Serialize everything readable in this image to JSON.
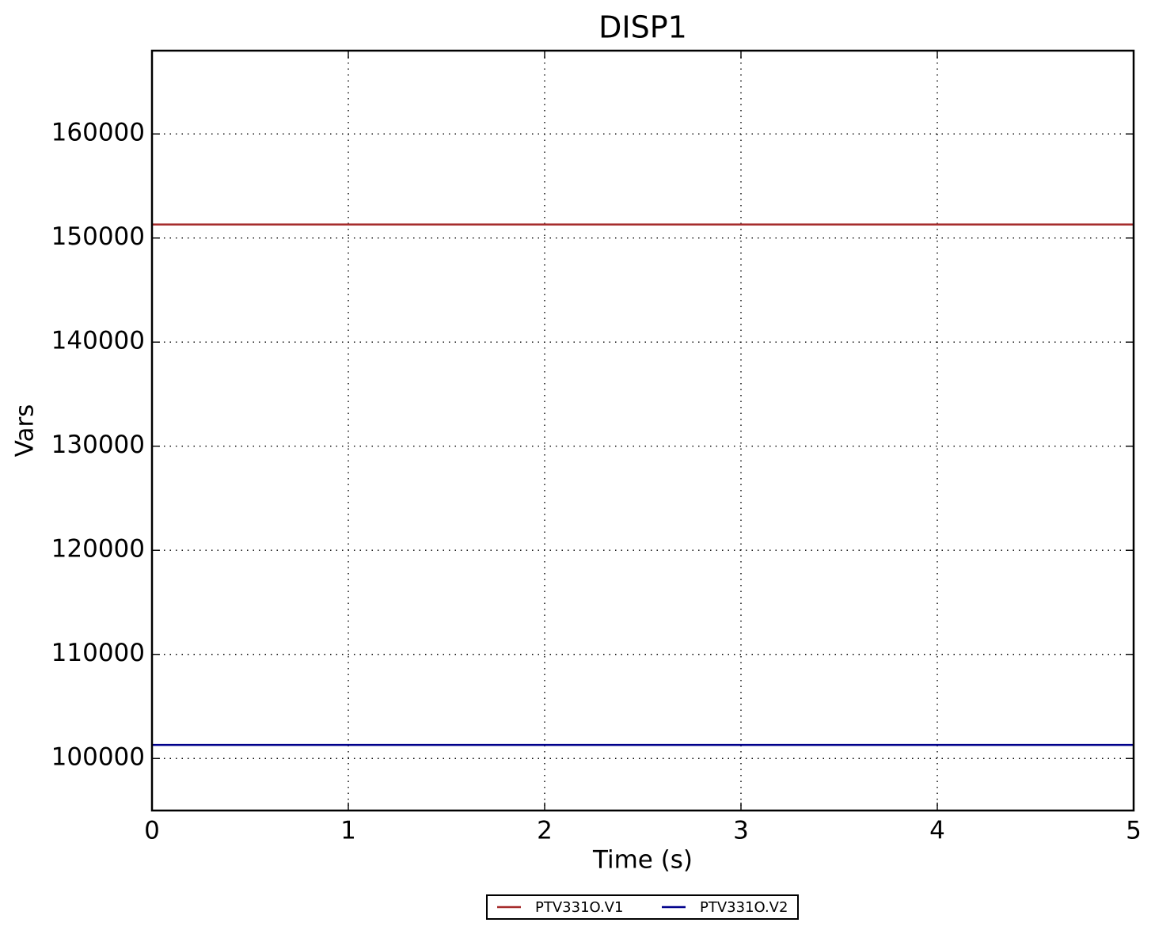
{
  "chart_data": {
    "type": "line",
    "title": "DISP1",
    "x_label": "Time (s)",
    "y_label": "Vars",
    "x": [
      0,
      5
    ],
    "series": [
      {
        "name": "PTV331O.V1",
        "color": "#a52a2a",
        "values": [
          151300,
          151300
        ]
      },
      {
        "name": "PTV331O.V2",
        "color": "#00008b",
        "values": [
          101300,
          101300
        ]
      }
    ],
    "xlim": [
      0,
      5
    ],
    "xticks": [
      0,
      1,
      2,
      3,
      4,
      5
    ],
    "ylim": [
      95000,
      168000
    ],
    "yticks": [
      100000,
      110000,
      120000,
      130000,
      140000,
      150000,
      160000
    ],
    "grid": true,
    "legend": "bottom"
  }
}
